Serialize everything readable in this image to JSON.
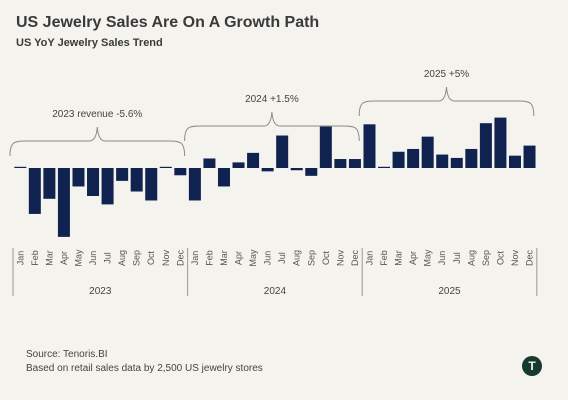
{
  "title": "US Jewelry Sales Are On A Growth Path",
  "subtitle": "US YoY Jewelry Sales Trend",
  "colors": {
    "bar": "#10224f",
    "axis": "#9a9a9a",
    "text": "#444444",
    "background": "#f4f3ee"
  },
  "chart_data": {
    "type": "bar",
    "months": [
      "Jan",
      "Feb",
      "Mar",
      "Apr",
      "May",
      "Jun",
      "Jul",
      "Aug",
      "Sep",
      "Oct",
      "Nov",
      "Dec"
    ],
    "years": [
      "2023",
      "2024",
      "2025"
    ],
    "values": [
      0.1,
      -8.2,
      -5.5,
      -12.3,
      -3.3,
      -5.0,
      -6.5,
      -2.3,
      -4.2,
      -5.8,
      0.1,
      -1.3,
      -5.8,
      1.7,
      -3.3,
      1.0,
      2.7,
      -0.6,
      5.8,
      -0.4,
      -1.4,
      7.4,
      1.6,
      1.6,
      7.8,
      0.0,
      2.9,
      3.4,
      5.6,
      2.4,
      1.8,
      3.4,
      8.0,
      9.0,
      2.2,
      4.0
    ],
    "annotations": [
      {
        "text": "2023 revenue -5.6%",
        "year": "2023"
      },
      {
        "text": "2024 +1.5%",
        "year": "2024"
      },
      {
        "text": "2025 +5%",
        "year": "2025"
      }
    ],
    "ylim": [
      -14,
      10
    ],
    "grid": false,
    "legend": "none"
  },
  "footer": {
    "source": "Source: Tenoris.BI",
    "note": "Based on retail sales data by 2,500 US jewelry stores"
  },
  "logo_icon": "tenoris-logo-icon"
}
